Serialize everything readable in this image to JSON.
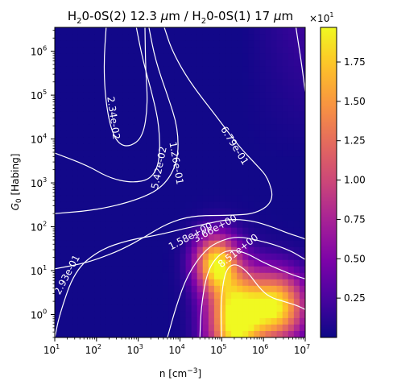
{
  "chart_data": {
    "type": "heatmap",
    "title": {
      "prefix1": "H",
      "sub1": "2",
      "mid1": "0-0S(2) 12.3 ",
      "mu1": "μ",
      "unit1": "m / H",
      "sub2": "2",
      "mid2": "0-0S(1) 17 ",
      "mu2": "μ",
      "unit2": "m"
    },
    "xlabel": {
      "main": "n [cm",
      "sup": "−3",
      "close": "]"
    },
    "ylabel": {
      "g": "G",
      "sub": "0",
      "rest": " [Habing]"
    },
    "x_scale": "log",
    "y_scale": "log",
    "xlim": [
      10,
      10000000
    ],
    "ylim": [
      0.3,
      3500000
    ],
    "x_ticks": [
      {
        "base": "10",
        "exp": "1",
        "value": 10
      },
      {
        "base": "10",
        "exp": "2",
        "value": 100
      },
      {
        "base": "10",
        "exp": "3",
        "value": 1000
      },
      {
        "base": "10",
        "exp": "4",
        "value": 10000
      },
      {
        "base": "10",
        "exp": "5",
        "value": 100000
      },
      {
        "base": "10",
        "exp": "6",
        "value": 1000000
      },
      {
        "base": "10",
        "exp": "7",
        "value": 10000000
      }
    ],
    "y_ticks": [
      {
        "base": "10",
        "exp": "0",
        "value": 1
      },
      {
        "base": "10",
        "exp": "1",
        "value": 10
      },
      {
        "base": "10",
        "exp": "2",
        "value": 100
      },
      {
        "base": "10",
        "exp": "3",
        "value": 1000
      },
      {
        "base": "10",
        "exp": "4",
        "value": 10000
      },
      {
        "base": "10",
        "exp": "5",
        "value": 100000
      },
      {
        "base": "10",
        "exp": "6",
        "value": 1000000
      }
    ],
    "colormap": "plasma",
    "colorbar": {
      "range": [
        0.0,
        1.97
      ],
      "ticks": [
        0.25,
        0.5,
        0.75,
        1.0,
        1.25,
        1.5,
        1.75
      ],
      "tick_labels": [
        "0.25",
        "0.50",
        "0.75",
        "1.00",
        "1.25",
        "1.50",
        "1.75"
      ],
      "multiplier": {
        "base": "×10",
        "exp": "1"
      }
    },
    "contour_labels": [
      {
        "text": "2.34e-02",
        "x": 250,
        "y": 30000,
        "rotation": 82
      },
      {
        "text": "5.42e-02",
        "x": 3200,
        "y": 2200,
        "rotation": -78
      },
      {
        "text": "1.26e-01",
        "x": 8000,
        "y": 2800,
        "rotation": 80
      },
      {
        "text": "6.79e-01",
        "x": 200000,
        "y": 7000,
        "rotation": 58
      },
      {
        "text": "2.93e-01",
        "x": 20,
        "y": 8,
        "rotation": -62
      },
      {
        "text": "1.58e+00",
        "x": 18000,
        "y": 60,
        "rotation": -28
      },
      {
        "text": "3.66e+00",
        "x": 70000,
        "y": 90,
        "rotation": -28
      },
      {
        "text": "8.51e+00",
        "x": 250000,
        "y": 28,
        "rotation": -38
      }
    ],
    "contour_lines": [
      {
        "level": "2.34e-02",
        "points": [
          [
            170,
            3500000
          ],
          [
            150,
            600000
          ],
          [
            160,
            100000
          ],
          [
            210,
            20000
          ],
          [
            320,
            8000
          ],
          [
            600,
            6500
          ],
          [
            1300,
            11000
          ],
          [
            1700,
            60000
          ],
          [
            1500,
            400000
          ],
          [
            1450,
            3500000
          ]
        ]
      },
      {
        "level": "5.42e-02",
        "points": [
          [
            900,
            3500000
          ],
          [
            1300,
            600000
          ],
          [
            2200,
            100000
          ],
          [
            3200,
            20000
          ],
          [
            3300,
            3000
          ],
          [
            2000,
            1200
          ],
          [
            700,
            1000
          ],
          [
            200,
            1300
          ],
          [
            60,
            2500
          ],
          [
            10,
            4800
          ]
        ]
      },
      {
        "level": "1.26e-01",
        "points": [
          [
            1800,
            3500000
          ],
          [
            2600,
            600000
          ],
          [
            5000,
            100000
          ],
          [
            9000,
            18000
          ],
          [
            9000,
            3000
          ],
          [
            4000,
            800
          ],
          [
            900,
            400
          ],
          [
            100,
            240
          ],
          [
            10,
            200
          ]
        ]
      },
      {
        "level": "6.79e-01",
        "points": [
          [
            4200,
            3500000
          ],
          [
            6500,
            1000000
          ],
          [
            17000,
            200000
          ],
          [
            80000,
            30000
          ],
          [
            250000,
            7000
          ],
          [
            700000,
            2500
          ],
          [
            1300000,
            1300
          ],
          [
            1800000,
            400
          ],
          [
            700000,
            200
          ],
          [
            150000,
            180
          ],
          [
            20000,
            180
          ],
          [
            5000,
            120
          ],
          [
            1500,
            60
          ],
          [
            400,
            30
          ],
          [
            100,
            18
          ],
          [
            40,
            14
          ],
          [
            10,
            11
          ]
        ]
      },
      {
        "level": "upper-right",
        "points": [
          [
            6000000,
            3500000
          ],
          [
            8000000,
            600000
          ],
          [
            10000000,
            120000
          ]
        ]
      },
      {
        "level": "2.93e-01",
        "points": [
          [
            10,
            0.3
          ],
          [
            13,
            1.0
          ],
          [
            30,
            10
          ],
          [
            120,
            30
          ],
          [
            600,
            50
          ],
          [
            3000,
            65
          ],
          [
            12000,
            90
          ],
          [
            50000,
            120
          ],
          [
            150000,
            150
          ],
          [
            500000,
            140
          ],
          [
            1600000,
            100
          ],
          [
            4000000,
            70
          ],
          [
            9000000,
            55
          ],
          [
            10000000,
            52
          ]
        ]
      },
      {
        "level": "1.58e+00",
        "points": [
          [
            5000,
            0.3
          ],
          [
            8000,
            1.5
          ],
          [
            15000,
            8
          ],
          [
            40000,
            30
          ],
          [
            100000,
            50
          ],
          [
            250000,
            60
          ],
          [
            700000,
            50
          ],
          [
            2000000,
            38
          ],
          [
            4500000,
            28
          ],
          [
            7000000,
            22
          ],
          [
            10000000,
            18
          ]
        ]
      },
      {
        "level": "3.66e+00",
        "points": [
          [
            30000,
            0.3
          ],
          [
            32000,
            1.5
          ],
          [
            45000,
            10
          ],
          [
            90000,
            25
          ],
          [
            180000,
            30
          ],
          [
            400000,
            25
          ],
          [
            900000,
            16
          ],
          [
            2200000,
            11
          ],
          [
            5000000,
            8
          ],
          [
            10000000,
            6.5
          ]
        ]
      },
      {
        "level": "8.51e+00",
        "points": [
          [
            100000,
            0.3
          ],
          [
            95000,
            2
          ],
          [
            120000,
            10
          ],
          [
            200000,
            15
          ],
          [
            400000,
            10
          ],
          [
            800000,
            4
          ],
          [
            1400000,
            2.5
          ],
          [
            3000000,
            2
          ],
          [
            6500000,
            1.6
          ],
          [
            10000000,
            1.3
          ]
        ]
      }
    ],
    "intensity_peaks": [
      {
        "x": 200000,
        "y": 0.7,
        "value": 1.97,
        "sx": 0.45,
        "sy": 0.8
      },
      {
        "x": 2000000,
        "y": 1.5,
        "value": 1.85,
        "sx": 0.5,
        "sy": 0.55
      },
      {
        "x": 70000,
        "y": 15,
        "value": 1.7,
        "sx": 0.35,
        "sy": 0.45
      }
    ]
  }
}
